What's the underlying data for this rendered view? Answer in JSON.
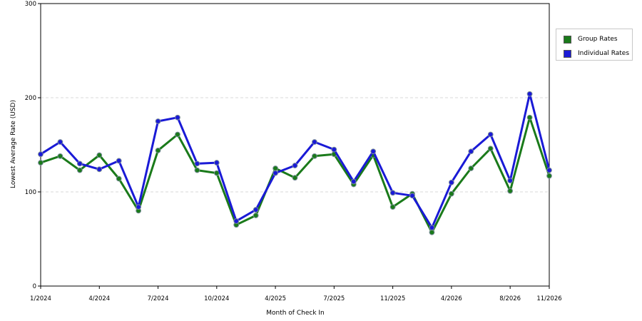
{
  "chart_data": {
    "type": "line",
    "title": "",
    "xlabel": "Month of Check In",
    "ylabel": "Lowest Average Rate (USD)",
    "ylim": [
      0,
      300
    ],
    "yticks": [
      0,
      100,
      200,
      300
    ],
    "grid": true,
    "legend_position": "top-right",
    "x_tick_labels": [
      "1/2024",
      "4/2024",
      "7/2024",
      "10/2024",
      "4/2025",
      "7/2025",
      "11/2025",
      "4/2026",
      "8/2026",
      "11/2026"
    ],
    "x_tick_index": [
      0,
      3,
      6,
      9,
      12,
      15,
      18,
      21,
      24,
      26
    ],
    "series": [
      {
        "name": "Group Rates",
        "color": "#1a7a1a",
        "values": [
          131,
          138,
          123,
          139,
          114,
          80,
          144,
          161,
          123,
          120,
          65,
          75,
          125,
          115,
          138,
          140,
          108,
          139,
          84,
          98,
          57,
          98,
          125,
          146,
          101,
          179,
          117
        ]
      },
      {
        "name": "Individual Rates",
        "color": "#1a1ad6",
        "values": [
          140,
          153,
          130,
          124,
          133,
          84,
          175,
          179,
          130,
          131,
          69,
          81,
          120,
          128,
          153,
          145,
          111,
          143,
          99,
          96,
          62,
          110,
          143,
          161,
          112,
          204,
          123
        ]
      }
    ]
  }
}
